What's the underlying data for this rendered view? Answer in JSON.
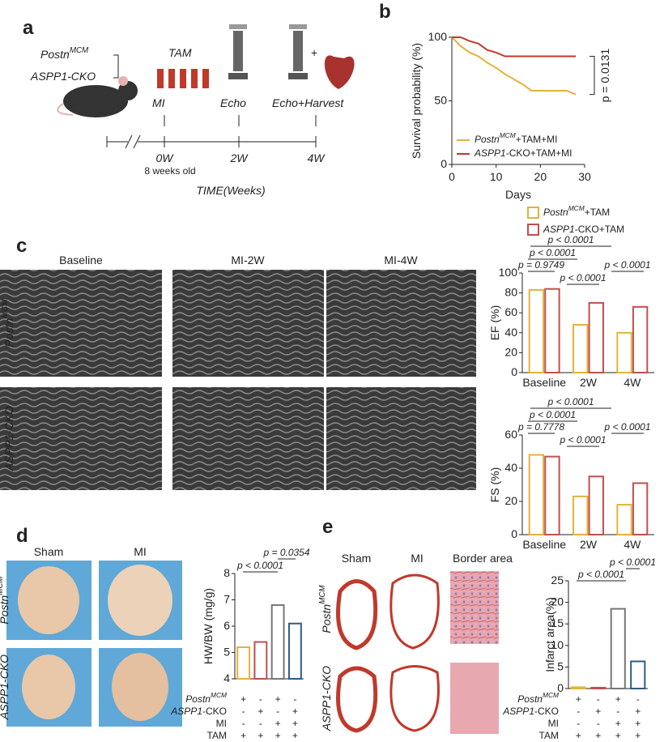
{
  "panels": {
    "a": "a",
    "b": "b",
    "c": "c",
    "d": "d",
    "e": "e"
  },
  "panel_a": {
    "genotype_1": "PostnMCM",
    "genotype_2": "ASPP1-CKO",
    "tam": "TAM",
    "mi": "MI",
    "echo": "Echo",
    "echo_harvest": "Echo+Harvest",
    "t0": "0W",
    "t2": "2W",
    "t4": "4W",
    "age": "8 weeks old",
    "axis": "TIME(Weeks)",
    "plus": "+"
  },
  "panel_c": {
    "columns": [
      "Baseline",
      "MI-2W",
      "MI-4W"
    ],
    "rows": [
      "PostnMCM",
      "ASPP1-CKO"
    ]
  },
  "panel_d": {
    "columns": [
      "Sham",
      "MI"
    ],
    "rows": [
      "PostnMCM",
      "ASPP1-CKO"
    ],
    "conditions": [
      {
        "label": "PostnMCM",
        "signs": [
          "+",
          "-",
          "+",
          "-"
        ]
      },
      {
        "label": "ASPP1-CKO",
        "signs": [
          "-",
          "+",
          "-",
          "+"
        ]
      },
      {
        "label": "MI",
        "signs": [
          "-",
          "-",
          "+",
          "+"
        ]
      },
      {
        "label": "TAM",
        "signs": [
          "+",
          "+",
          "+",
          "+"
        ]
      }
    ]
  },
  "panel_e": {
    "columns": [
      "Sham",
      "MI",
      "Border area"
    ],
    "rows": [
      "PostnMCM",
      "ASPP1-CKO"
    ],
    "conditions": [
      {
        "label": "PostnMCM",
        "signs": [
          "+",
          "-",
          "+",
          "-"
        ]
      },
      {
        "label": "ASPP1-CKO",
        "signs": [
          "-",
          "+",
          "-",
          "+"
        ]
      },
      {
        "label": "MI",
        "signs": [
          "-",
          "-",
          "+",
          "+"
        ]
      },
      {
        "label": "TAM",
        "signs": [
          "+",
          "+",
          "+",
          "+"
        ]
      }
    ]
  },
  "chart_data": [
    {
      "type": "line",
      "xlabel": "Days",
      "ylabel": "Survival probability (%)",
      "annotation": "p = 0.0131",
      "x": [
        0,
        2,
        4,
        6,
        8,
        10,
        12,
        14,
        16,
        18,
        20,
        22,
        24,
        26,
        28
      ],
      "series": [
        {
          "name": "PostnMCM+TAM+MI",
          "color": "#e3b23c",
          "values": [
            100,
            93,
            88,
            85,
            80,
            76,
            71,
            67,
            63,
            58,
            58,
            58,
            58,
            58,
            55
          ]
        },
        {
          "name": "ASPP1-CKO+TAM+MI",
          "color": "#c0392b",
          "values": [
            100,
            100,
            97,
            95,
            90,
            88,
            85,
            85,
            85,
            85,
            85,
            85,
            85,
            85,
            85
          ]
        }
      ],
      "xlim": [
        0,
        30
      ],
      "xticks": [
        0,
        10,
        20,
        30
      ],
      "ylim": [
        0,
        100
      ],
      "yticks": [
        0,
        50,
        100
      ]
    },
    {
      "type": "bar",
      "ylabel": "EF (%)",
      "categories": [
        "Baseline",
        "2W",
        "4W"
      ],
      "series": [
        {
          "name": "PostnMCM+TAM",
          "color": "#e3b23c",
          "values": [
            83,
            48,
            40
          ]
        },
        {
          "name": "ASPP1-CKO+TAM",
          "color": "#c0504d",
          "values": [
            84,
            70,
            66
          ]
        }
      ],
      "annotations": [
        "p < 0.0001",
        "p < 0.0001",
        "p = 0.9749",
        "p < 0.0001",
        "p < 0.0001"
      ],
      "ylim": [
        0,
        100
      ],
      "yticks": [
        0,
        20,
        40,
        60,
        80,
        100
      ]
    },
    {
      "type": "bar",
      "ylabel": "FS (%)",
      "categories": [
        "Baseline",
        "2W",
        "4W"
      ],
      "series": [
        {
          "name": "PostnMCM+TAM",
          "color": "#e3b23c",
          "values": [
            48,
            23,
            18
          ]
        },
        {
          "name": "ASPP1-CKO+TAM",
          "color": "#c0504d",
          "values": [
            47,
            35,
            31
          ]
        }
      ],
      "annotations": [
        "p < 0.0001",
        "p < 0.0001",
        "p = 0.7778",
        "p < 0.0001",
        "p < 0.0001"
      ],
      "ylim": [
        0,
        60
      ],
      "yticks": [
        0,
        20,
        40,
        60
      ]
    },
    {
      "type": "bar",
      "ylabel": "HW/BW  (mg/g)",
      "values": [
        5.2,
        5.4,
        6.8,
        6.1
      ],
      "colors": [
        "#e3b23c",
        "#c0504d",
        "#777777",
        "#2e5c8a"
      ],
      "annotations": [
        "p < 0.0001",
        "p = 0.0354"
      ],
      "ylim": [
        4,
        8
      ],
      "yticks": [
        4,
        5,
        6,
        7,
        8
      ]
    },
    {
      "type": "bar",
      "ylabel": "Infarct area(%)",
      "values": [
        0.3,
        0.2,
        18.5,
        6.3
      ],
      "colors": [
        "#e3b23c",
        "#c0504d",
        "#777777",
        "#2e5c8a"
      ],
      "annotations": [
        "p < 0.0001",
        "p < 0.0001"
      ],
      "ylim": [
        0,
        25
      ],
      "yticks": [
        0,
        5,
        10,
        15,
        20,
        25
      ]
    }
  ]
}
